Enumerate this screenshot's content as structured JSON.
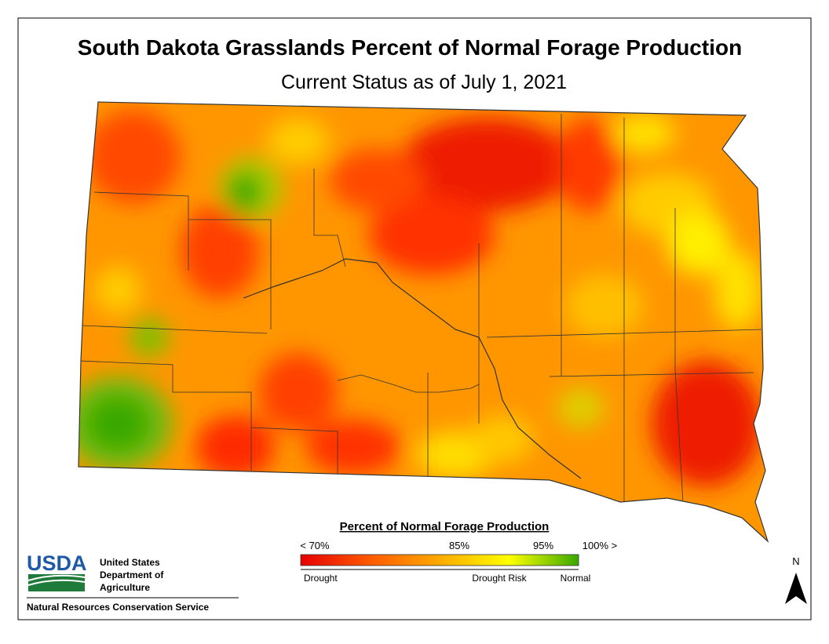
{
  "header": {
    "title": "South Dakota Grasslands Percent of Normal Forage Production",
    "subtitle": "Current Status as of July 1, 2021"
  },
  "legend": {
    "title": "Percent of Normal Forage Production",
    "tick_labels": [
      "< 70%",
      "85%",
      "95%",
      "100% >"
    ],
    "class_labels": [
      "Drought",
      "Drought Risk",
      "Normal"
    ],
    "colors": [
      "#e60000",
      "#ff5a00",
      "#ffaa00",
      "#ffff00",
      "#38a800"
    ]
  },
  "agency": {
    "logo": "USDA",
    "department": [
      "United States",
      "Department of",
      "Agriculture"
    ],
    "service": "Natural Resources Conservation Service"
  },
  "north_arrow": "N"
}
